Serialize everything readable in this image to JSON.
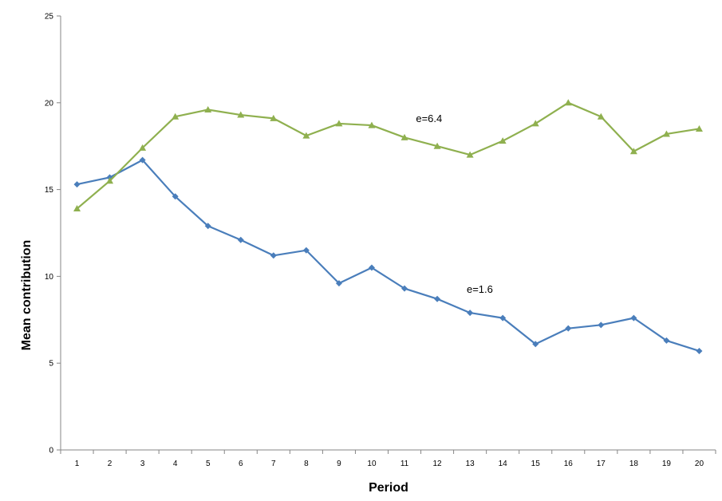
{
  "chart_data": {
    "type": "line",
    "title": "",
    "xlabel": "Period",
    "ylabel": "Mean contribution",
    "x": [
      1,
      2,
      3,
      4,
      5,
      6,
      7,
      8,
      9,
      10,
      11,
      12,
      13,
      14,
      15,
      16,
      17,
      18,
      19,
      20
    ],
    "ylim": [
      0,
      25
    ],
    "yticks": [
      0,
      5,
      10,
      15,
      20,
      25
    ],
    "grid": false,
    "legend": "none",
    "series": [
      {
        "label": "e=1.6",
        "color": "#4a7ebb",
        "marker": "diamond",
        "values": [
          15.3,
          15.7,
          16.7,
          14.6,
          12.9,
          12.1,
          11.2,
          11.5,
          9.6,
          10.5,
          9.3,
          8.7,
          7.9,
          7.6,
          6.1,
          7.0,
          7.2,
          7.6,
          6.3,
          5.7
        ]
      },
      {
        "label": "e=6.4",
        "color": "#8fb04f",
        "marker": "triangle",
        "values": [
          13.9,
          15.5,
          17.4,
          19.2,
          19.6,
          19.3,
          19.1,
          18.1,
          18.8,
          18.7,
          18.0,
          17.5,
          17.0,
          17.8,
          18.8,
          20.0,
          19.2,
          17.2,
          18.2,
          18.5
        ]
      }
    ],
    "annotations": [
      {
        "text": "e=6.4",
        "series": 1
      },
      {
        "text": "e=1.6",
        "series": 0
      }
    ]
  }
}
